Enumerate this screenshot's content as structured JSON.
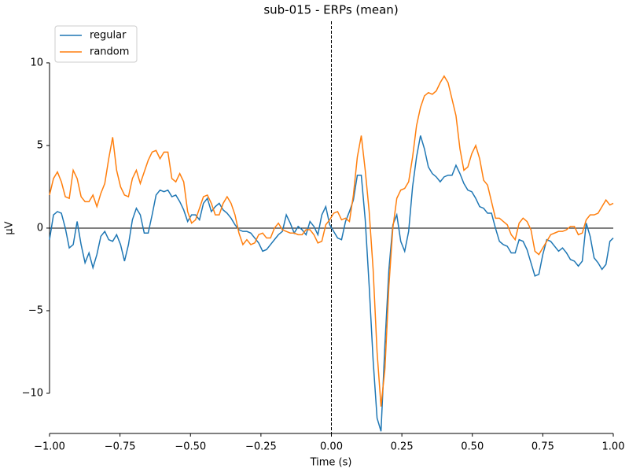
{
  "chart_data": {
    "type": "line",
    "title": "sub-015 - ERPs (mean)",
    "x_label": "Time (s)",
    "y_label": "µV",
    "x": [
      -1,
      -0.986,
      -0.972,
      -0.958,
      -0.944,
      -0.93,
      -0.916,
      -0.902,
      -0.888,
      -0.874,
      -0.86,
      -0.846,
      -0.832,
      -0.818,
      -0.804,
      -0.79,
      -0.776,
      -0.762,
      -0.748,
      -0.734,
      -0.72,
      -0.706,
      -0.692,
      -0.678,
      -0.664,
      -0.65,
      -0.636,
      -0.622,
      -0.608,
      -0.594,
      -0.58,
      -0.566,
      -0.552,
      -0.538,
      -0.524,
      -0.51,
      -0.496,
      -0.482,
      -0.468,
      -0.454,
      -0.44,
      -0.426,
      -0.412,
      -0.398,
      -0.384,
      -0.37,
      -0.356,
      -0.342,
      -0.328,
      -0.314,
      -0.3,
      -0.286,
      -0.272,
      -0.258,
      -0.244,
      -0.23,
      -0.216,
      -0.202,
      -0.188,
      -0.174,
      -0.16,
      -0.146,
      -0.132,
      -0.118,
      -0.104,
      -0.09,
      -0.076,
      -0.062,
      -0.048,
      -0.034,
      -0.02,
      -0.006,
      0.008,
      0.022,
      0.036,
      0.05,
      0.064,
      0.078,
      0.092,
      0.106,
      0.12,
      0.134,
      0.148,
      0.162,
      0.176,
      0.19,
      0.204,
      0.218,
      0.232,
      0.246,
      0.26,
      0.274,
      0.288,
      0.302,
      0.316,
      0.33,
      0.344,
      0.358,
      0.372,
      0.386,
      0.4,
      0.414,
      0.428,
      0.442,
      0.456,
      0.47,
      0.484,
      0.498,
      0.512,
      0.526,
      0.54,
      0.554,
      0.568,
      0.582,
      0.596,
      0.61,
      0.624,
      0.638,
      0.652,
      0.666,
      0.68,
      0.694,
      0.708,
      0.722,
      0.736,
      0.75,
      0.764,
      0.778,
      0.792,
      0.806,
      0.82,
      0.834,
      0.848,
      0.862,
      0.876,
      0.89,
      0.904,
      0.918,
      0.932,
      0.946,
      0.96,
      0.974,
      0.988,
      1.0
    ],
    "series": [
      {
        "name": "regular",
        "color": "#1f77b4",
        "values": [
          -0.7,
          0.8,
          1.0,
          0.9,
          0.0,
          -1.2,
          -1.0,
          0.4,
          -1.0,
          -2.1,
          -1.5,
          -2.4,
          -1.6,
          -0.5,
          -0.2,
          -0.7,
          -0.8,
          -0.4,
          -1.0,
          -2.0,
          -1.0,
          0.5,
          1.2,
          0.8,
          -0.3,
          -0.3,
          0.8,
          2.0,
          2.3,
          2.2,
          2.3,
          1.9,
          2.0,
          1.6,
          1.1,
          0.4,
          0.8,
          0.8,
          0.5,
          1.5,
          1.8,
          1.0,
          1.3,
          1.5,
          1.1,
          0.9,
          0.6,
          0.2,
          -0.1,
          -0.2,
          -0.2,
          -0.3,
          -0.6,
          -0.9,
          -1.4,
          -1.3,
          -1.0,
          -0.7,
          -0.4,
          -0.2,
          0.8,
          0.3,
          -0.3,
          0.1,
          -0.1,
          -0.4,
          0.4,
          0.1,
          -0.4,
          0.8,
          1.3,
          0.2,
          -0.2,
          -0.6,
          -0.7,
          0.4,
          1.0,
          1.7,
          3.2,
          3.2,
          0.5,
          -3.5,
          -8,
          -11.5,
          -12.3,
          -7,
          -2.5,
          0.2,
          0.8,
          -0.8,
          -1.4,
          -0.2,
          2.5,
          4.3,
          5.6,
          4.8,
          3.7,
          3.3,
          3.1,
          2.8,
          3.1,
          3.2,
          3.2,
          3.8,
          3.3,
          2.7,
          2.3,
          2.2,
          1.8,
          1.3,
          1.2,
          0.9,
          0.9,
          0.0,
          -0.8,
          -1.0,
          -1.1,
          -1.5,
          -1.5,
          -0.7,
          -0.8,
          -1.3,
          -2.1,
          -2.9,
          -2.8,
          -1.6,
          -0.7,
          -0.8,
          -1.1,
          -1.4,
          -1.2,
          -1.5,
          -1.9,
          -2.0,
          -2.3,
          -2.0,
          0.3,
          -0.5,
          -1.8,
          -2.1,
          -2.5,
          -2.2,
          -0.8,
          -0.6
        ]
      },
      {
        "name": "random",
        "color": "#ff7f0e",
        "values": [
          2.0,
          3.0,
          3.4,
          2.8,
          1.9,
          1.8,
          3.5,
          3.0,
          1.9,
          1.6,
          1.6,
          2.0,
          1.3,
          2.1,
          2.7,
          4.2,
          5.5,
          3.5,
          2.5,
          2.0,
          1.9,
          3.0,
          3.5,
          2.7,
          3.4,
          4.1,
          4.6,
          4.7,
          4.2,
          4.6,
          4.6,
          3.0,
          2.8,
          3.3,
          2.8,
          1.0,
          0.3,
          0.5,
          1.2,
          1.9,
          2.0,
          1.5,
          0.8,
          0.8,
          1.5,
          1.9,
          1.5,
          0.8,
          -0.3,
          -1.0,
          -0.7,
          -1.0,
          -0.9,
          -0.4,
          -0.3,
          -0.6,
          -0.6,
          0.0,
          0.3,
          -0.1,
          -0.2,
          -0.3,
          -0.3,
          -0.4,
          -0.4,
          -0.1,
          -0.1,
          -0.4,
          -0.9,
          -0.8,
          0.2,
          0.5,
          0.9,
          1.0,
          0.5,
          0.6,
          0.4,
          2.0,
          4.3,
          5.6,
          3.5,
          1.0,
          -2.5,
          -7.5,
          -10.8,
          -8.5,
          -3.5,
          0.0,
          1.8,
          2.3,
          2.4,
          2.8,
          4.3,
          6.2,
          7.3,
          8.0,
          8.2,
          8.1,
          8.3,
          8.8,
          9.2,
          8.8,
          7.8,
          6.8,
          4.8,
          3.5,
          3.7,
          4.5,
          5.0,
          4.2,
          2.9,
          2.6,
          1.6,
          0.6,
          0.6,
          0.4,
          0.2,
          -0.4,
          -0.7,
          0.3,
          0.6,
          0.4,
          -0.1,
          -1.4,
          -1.6,
          -1.2,
          -0.8,
          -0.4,
          -0.3,
          -0.2,
          -0.2,
          -0.1,
          0.1,
          0.1,
          -0.4,
          -0.3,
          0.5,
          0.8,
          0.8,
          0.9,
          1.3,
          1.7,
          1.4,
          1.5
        ]
      }
    ],
    "xlim": [
      -1,
      1
    ],
    "xticks": [
      {
        "value": -1,
        "label": "−1.00"
      },
      {
        "value": -0.75,
        "label": "−0.75"
      },
      {
        "value": -0.5,
        "label": "−0.50"
      },
      {
        "value": -0.25,
        "label": "−0.25"
      },
      {
        "value": 0,
        "label": "0.00"
      },
      {
        "value": 0.25,
        "label": "0.25"
      },
      {
        "value": 0.5,
        "label": "0.50"
      },
      {
        "value": 0.75,
        "label": "0.75"
      },
      {
        "value": 1,
        "label": "1.00"
      }
    ],
    "ylim": [
      -12.43,
      12.52
    ],
    "yticks": [
      {
        "value": -10,
        "label": "−10"
      },
      {
        "value": -5,
        "label": "−5"
      },
      0,
      5,
      10
    ],
    "grid": false,
    "legend": "upper left"
  }
}
